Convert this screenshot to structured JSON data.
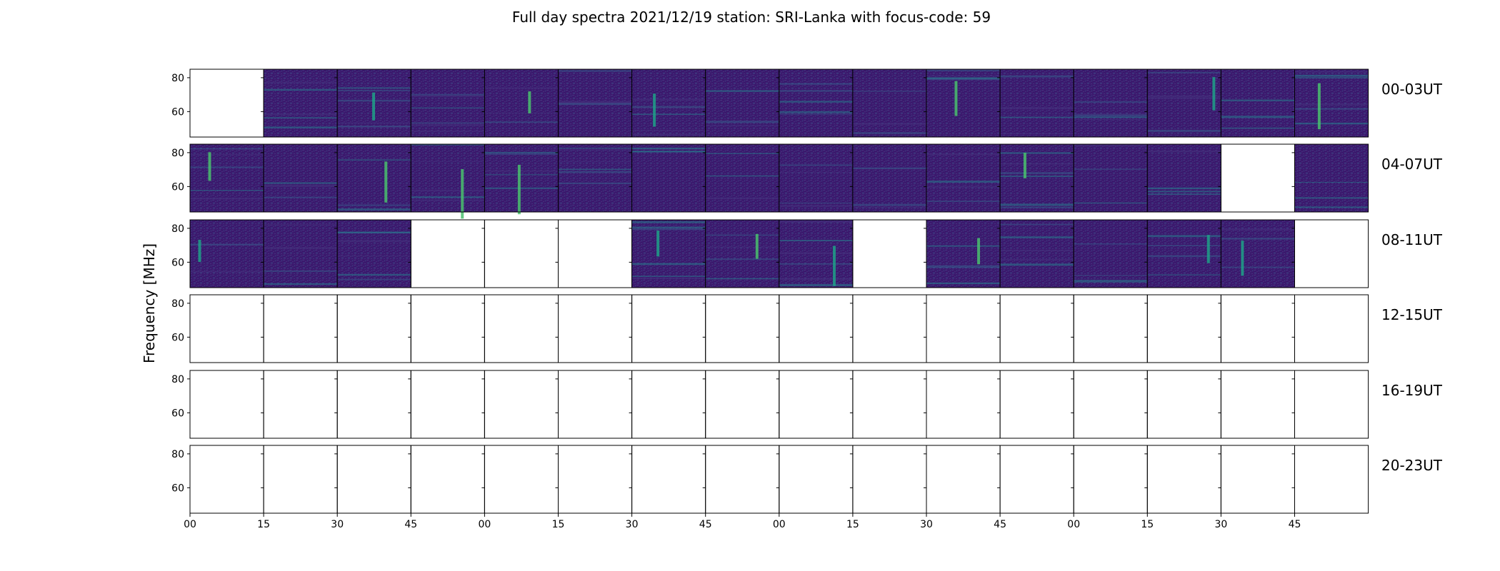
{
  "chart_data": {
    "type": "heatmap",
    "title": "Full day spectra 2021/12/19 station: SRI-Lanka with focus-code: 59",
    "ylabel": "Frequency [MHz]",
    "xlabel": "",
    "y_ticks": [
      "80",
      "60"
    ],
    "y_tick_values": [
      80,
      60
    ],
    "ylim": [
      45,
      85
    ],
    "x_ticks": [
      "00",
      "15",
      "30",
      "45",
      "00",
      "15",
      "30",
      "45",
      "00",
      "15",
      "30",
      "45",
      "00",
      "15",
      "30",
      "45"
    ],
    "colormap": [
      "#440154",
      "#46327e",
      "#365c8d",
      "#277f8e",
      "#1fa187",
      "#4ac16d",
      "#a0da39",
      "#fde725"
    ],
    "rows": [
      {
        "label": "00-03UT",
        "panels": [
          0,
          1,
          1,
          1,
          1,
          1,
          1,
          1,
          1,
          1,
          1,
          1,
          1,
          1,
          1,
          1
        ]
      },
      {
        "label": "04-07UT",
        "panels": [
          1,
          1,
          1,
          1,
          1,
          1,
          1,
          1,
          1,
          1,
          1,
          1,
          1,
          1,
          0,
          1
        ]
      },
      {
        "label": "08-11UT",
        "panels": [
          1,
          1,
          1,
          0,
          0,
          0,
          1,
          1,
          1,
          0,
          1,
          1,
          1,
          1,
          1,
          0
        ]
      },
      {
        "label": "12-15UT",
        "panels": [
          0,
          0,
          0,
          0,
          0,
          0,
          0,
          0,
          0,
          0,
          0,
          0,
          0,
          0,
          0,
          0
        ]
      },
      {
        "label": "16-19UT",
        "panels": [
          0,
          0,
          0,
          0,
          0,
          0,
          0,
          0,
          0,
          0,
          0,
          0,
          0,
          0,
          0,
          0
        ]
      },
      {
        "label": "20-23UT",
        "panels": [
          0,
          0,
          0,
          0,
          0,
          0,
          0,
          0,
          0,
          0,
          0,
          0,
          0,
          0,
          0,
          0
        ]
      }
    ]
  }
}
